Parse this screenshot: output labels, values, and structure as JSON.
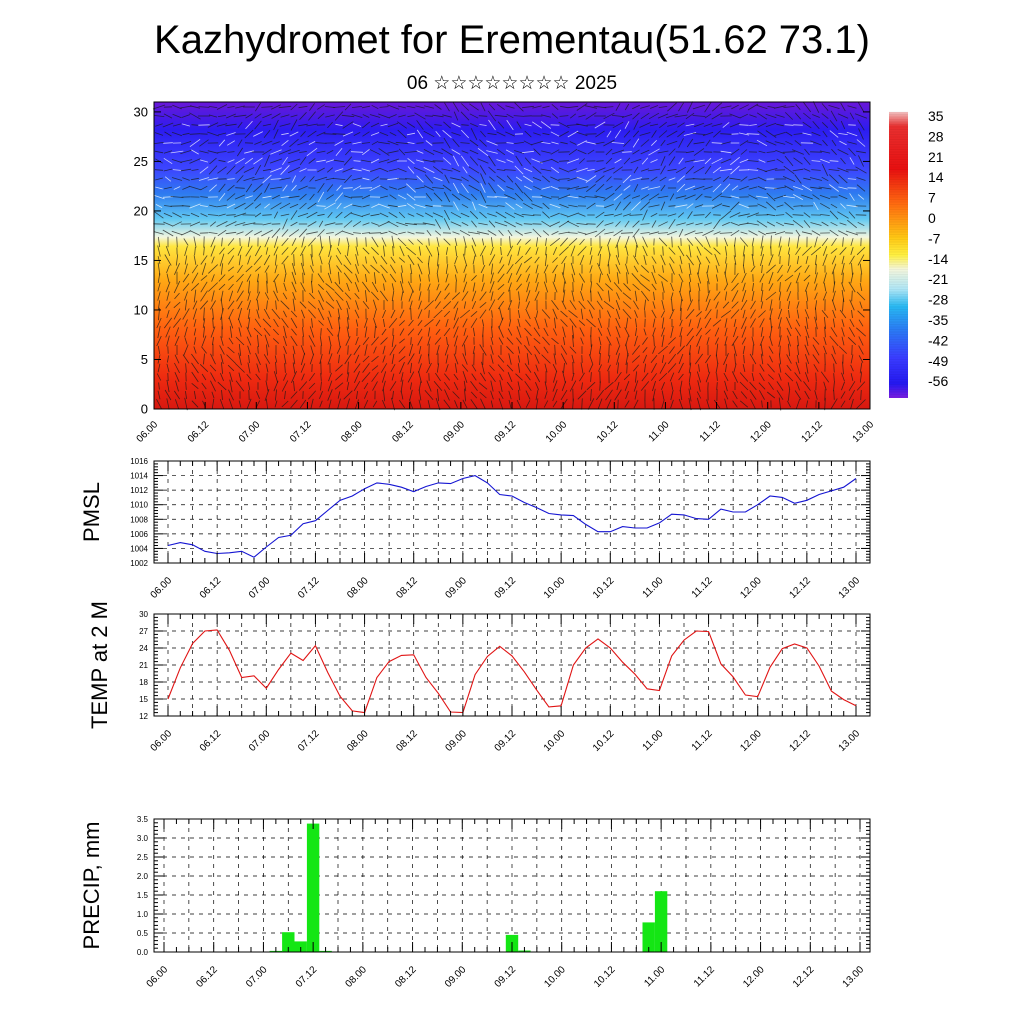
{
  "title": "Kazhydromet for Erementau(51.62 73.1)",
  "subtitle": "06 ☆☆☆☆☆☆☆☆ 2025",
  "colors": {
    "pmsl_line": "#1414d2",
    "temp_line": "#e01414",
    "precip_bar": "#14e614",
    "frame": "#000000"
  },
  "chart_data": [
    {
      "type": "heatmap",
      "name": "cross-section",
      "x_tick_labels": [
        "06.00",
        "06.12",
        "07.00",
        "07.12",
        "08.00",
        "08.12",
        "09.00",
        "09.12",
        "10.00",
        "10.12",
        "11.00",
        "11.12",
        "12.00",
        "12.12",
        "13.00"
      ],
      "y_ticks": [
        0,
        5,
        10,
        15,
        20,
        25,
        30
      ],
      "ylim": [
        0,
        31
      ],
      "colorbar_labels": [
        "35",
        "28",
        "21",
        "14",
        "7",
        "0",
        "-7",
        "-14",
        "-21",
        "-28",
        "-35",
        "-42",
        "-49",
        "-56"
      ],
      "colorbar_range": [
        -63,
        39
      ],
      "overlay": "wind vectors"
    },
    {
      "type": "line",
      "name": "pmsl",
      "ylabel": "PMSL",
      "x_tick_labels": [
        "06.00",
        "06.12",
        "07.00",
        "07.12",
        "08.00",
        "08.12",
        "09.00",
        "09.12",
        "10.00",
        "10.12",
        "11.00",
        "11.12",
        "12.00",
        "12.12",
        "13.00"
      ],
      "y_ticks": [
        1002,
        1004,
        1006,
        1008,
        1010,
        1012,
        1014,
        1016
      ],
      "ylim": [
        1002,
        1016
      ],
      "x_step_hours": 3,
      "values": [
        1004.4,
        1004.8,
        1004.5,
        1003.6,
        1003.3,
        1003.4,
        1003.6,
        1002.8,
        1004.2,
        1005.5,
        1005.8,
        1007.4,
        1007.8,
        1009.2,
        1010.6,
        1011.2,
        1012.2,
        1013.0,
        1012.8,
        1012.4,
        1011.8,
        1012.5,
        1013.0,
        1012.9,
        1013.6,
        1014.0,
        1013.0,
        1011.4,
        1011.2,
        1010.3,
        1009.6,
        1008.8,
        1008.6,
        1008.5,
        1007.3,
        1006.3,
        1006.3,
        1007.0,
        1006.8,
        1006.8,
        1007.5,
        1008.7,
        1008.6,
        1008.1,
        1008.0,
        1009.4,
        1009.0,
        1009.0,
        1010.0,
        1011.2,
        1011.0,
        1010.2,
        1010.6,
        1011.4,
        1011.9,
        1012.4,
        1013.6
      ]
    },
    {
      "type": "line",
      "name": "temperature",
      "ylabel": "TEMP at 2 M",
      "x_tick_labels": [
        "06.00",
        "06.12",
        "07.00",
        "07.12",
        "08.00",
        "08.12",
        "09.00",
        "09.12",
        "10.00",
        "10.12",
        "11.00",
        "11.12",
        "12.00",
        "12.12",
        "13.00"
      ],
      "y_ticks": [
        12,
        15,
        18,
        21,
        24,
        27,
        30
      ],
      "ylim": [
        12,
        30
      ],
      "x_step_hours": 3,
      "values": [
        15.0,
        20.5,
        24.8,
        27.0,
        27.2,
        23.6,
        18.8,
        19.1,
        16.9,
        20.2,
        23.1,
        21.8,
        24.4,
        19.7,
        15.5,
        12.9,
        12.6,
        18.8,
        21.6,
        22.7,
        22.8,
        18.8,
        16.0,
        12.7,
        12.6,
        19.3,
        22.5,
        24.3,
        22.6,
        19.8,
        16.6,
        13.6,
        13.8,
        21.0,
        24.0,
        25.6,
        24.0,
        21.5,
        19.4,
        16.8,
        16.5,
        22.6,
        25.4,
        27.0,
        26.9,
        21.2,
        18.9,
        15.7,
        15.4,
        20.6,
        23.9,
        24.7,
        24.0,
        20.8,
        16.4,
        14.9,
        13.8
      ]
    },
    {
      "type": "bar",
      "name": "precipitation",
      "ylabel": "PRECIP, mm",
      "x_tick_labels": [
        "06.00",
        "06.12",
        "07.00",
        "07.12",
        "08.00",
        "08.12",
        "09.00",
        "09.12",
        "10.00",
        "10.12",
        "11.00",
        "11.12",
        "12.00",
        "12.12",
        "13.00"
      ],
      "y_ticks": [
        0.0,
        0.5,
        1.0,
        1.5,
        2.0,
        2.5,
        3.0,
        3.5
      ],
      "y_tick_labels": [
        "0.0",
        "0.5",
        "1.0",
        "1.5",
        "2.0",
        "2.5",
        "3.0",
        "3.5"
      ],
      "ylim": [
        0,
        3.5
      ],
      "x_step_hours": 3,
      "values": [
        0,
        0,
        0,
        0,
        0,
        0,
        0,
        0,
        0,
        0.03,
        0.52,
        0.28,
        3.38,
        0.03,
        0,
        0,
        0,
        0,
        0,
        0,
        0,
        0,
        0,
        0,
        0,
        0,
        0,
        0,
        0.45,
        0.04,
        0,
        0,
        0,
        0,
        0,
        0,
        0,
        0,
        0,
        0.78,
        1.6,
        0,
        0,
        0,
        0,
        0,
        0,
        0,
        0,
        0,
        0,
        0,
        0,
        0,
        0,
        0,
        0
      ]
    }
  ]
}
